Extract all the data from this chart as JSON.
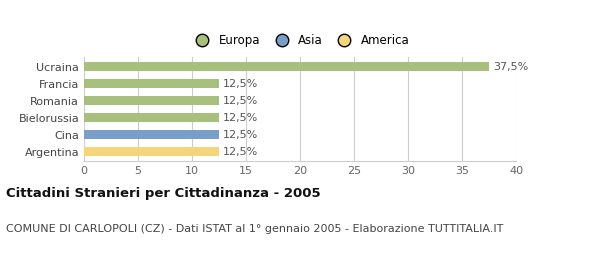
{
  "categories": [
    "Argentina",
    "Cina",
    "Bielorussia",
    "Romania",
    "Francia",
    "Ucraina"
  ],
  "values": [
    12.5,
    12.5,
    12.5,
    12.5,
    12.5,
    37.5
  ],
  "bar_colors": [
    "#f5d57a",
    "#7b9ec9",
    "#a8c07e",
    "#a8c07e",
    "#a8c07e",
    "#a8c07e"
  ],
  "labels": [
    "12,5%",
    "12,5%",
    "12,5%",
    "12,5%",
    "12,5%",
    "37,5%"
  ],
  "xlim": [
    0,
    40
  ],
  "xticks": [
    0,
    5,
    10,
    15,
    20,
    25,
    30,
    35,
    40
  ],
  "title": "Cittadini Stranieri per Cittadinanza - 2005",
  "subtitle": "COMUNE DI CARLOPOLI (CZ) - Dati ISTAT al 1° gennaio 2005 - Elaborazione TUTTITALIA.IT",
  "legend_labels": [
    "Europa",
    "Asia",
    "America"
  ],
  "legend_colors": [
    "#a8c07e",
    "#7b9ec9",
    "#f5d57a"
  ],
  "background_color": "#ffffff",
  "bar_height": 0.55,
  "grid_color": "#cccccc",
  "title_fontsize": 9.5,
  "subtitle_fontsize": 8,
  "label_fontsize": 8,
  "tick_fontsize": 8,
  "legend_fontsize": 8.5
}
